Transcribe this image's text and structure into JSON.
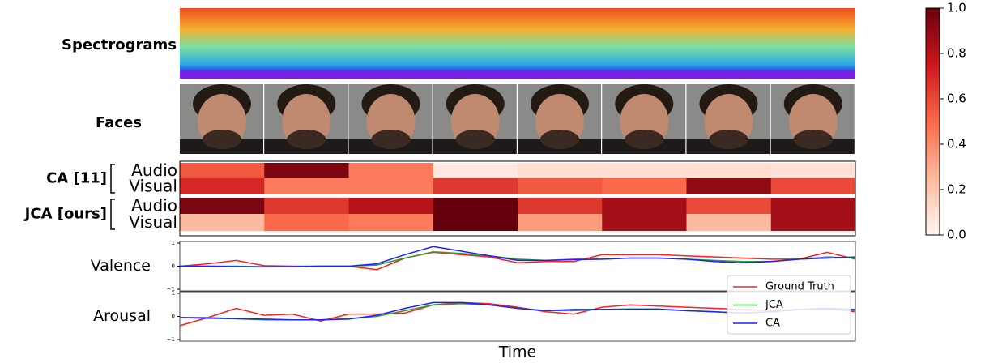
{
  "panels": {
    "spectrogram_label": "Spectrograms",
    "faces_label": "Faces"
  },
  "chart_data": [
    {
      "type": "heatmap",
      "row_groups": [
        {
          "name": "CA [11]",
          "rows": [
            {
              "name": "Audio",
              "values": [
                0.55,
                0.95,
                0.45,
                0.05,
                0.1,
                0.1,
                0.1,
                0.08
              ]
            },
            {
              "name": "Visual",
              "values": [
                0.7,
                0.45,
                0.45,
                0.65,
                0.55,
                0.5,
                0.9,
                0.6
              ]
            }
          ]
        },
        {
          "name": "JCA [ours]",
          "rows": [
            {
              "name": "Audio",
              "values": [
                0.95,
                0.65,
                0.8,
                1.0,
                0.65,
                0.85,
                0.6,
                0.85
              ]
            },
            {
              "name": "Visual",
              "values": [
                0.25,
                0.5,
                0.45,
                1.0,
                0.35,
                0.85,
                0.25,
                0.85
              ]
            }
          ]
        }
      ],
      "colormap": [
        "#fff5f0",
        "#fcbba1",
        "#fb6a4a",
        "#cb181d",
        "#67000d"
      ],
      "vlim": [
        0,
        1
      ],
      "colorbar_ticks": [
        {
          "value": 0,
          "label": "0.0"
        },
        {
          "value": 0.2,
          "label": "0.2"
        },
        {
          "value": 0.4,
          "label": "0.4"
        },
        {
          "value": 0.6,
          "label": "0.6"
        },
        {
          "value": 0.8,
          "label": "0.8"
        },
        {
          "value": 1,
          "label": "1.0"
        }
      ]
    },
    {
      "type": "line",
      "ylabel": "Valence",
      "ylim": [
        -1,
        1
      ],
      "yticks": [
        {
          "value": -1,
          "label": "−1"
        },
        0,
        1
      ],
      "series": [
        {
          "color": "#ff2020",
          "values": [
            0,
            0.1,
            0.25,
            0.02,
            0,
            0,
            0,
            -0.15,
            0.35,
            0.6,
            0.5,
            0.4,
            0.15,
            0.2,
            0.2,
            0.5,
            0.5,
            0.5,
            0.45,
            0.4,
            0.35,
            0.3,
            0.3,
            0.6,
            0.3
          ]
        },
        {
          "color": "#2ca02c",
          "values": [
            0,
            0,
            0,
            -0.02,
            -0.02,
            0,
            0,
            0.05,
            0.35,
            0.62,
            0.55,
            0.45,
            0.3,
            0.25,
            0.3,
            0.3,
            0.35,
            0.35,
            0.3,
            0.25,
            0.2,
            0.2,
            0.3,
            0.4,
            0.35
          ]
        },
        {
          "color": "#1f1fff",
          "values": [
            0,
            0,
            -0.02,
            -0.03,
            -0.02,
            0,
            0,
            0.1,
            0.5,
            0.85,
            0.65,
            0.45,
            0.25,
            0.25,
            0.28,
            0.3,
            0.35,
            0.35,
            0.3,
            0.2,
            0.15,
            0.2,
            0.3,
            0.35,
            0.4
          ]
        }
      ]
    },
    {
      "type": "line",
      "ylabel": "Arousal",
      "xlabel": "Time",
      "ylim": [
        -1,
        1
      ],
      "yticks": [
        {
          "value": -1,
          "label": "−1"
        },
        0,
        1
      ],
      "series": [
        {
          "name": "Ground Truth",
          "color": "#ff2020",
          "values": [
            -0.4,
            -0.05,
            0.35,
            0.05,
            0.1,
            -0.2,
            0.1,
            0.1,
            0.15,
            0.5,
            0.6,
            0.55,
            0.4,
            0.2,
            0.1,
            0.4,
            0.5,
            0.45,
            0.4,
            0.35,
            0.3,
            0.25,
            0.3,
            0.35,
            0.2
          ]
        },
        {
          "name": "JCA",
          "color": "#2ca02c",
          "values": [
            -0.05,
            -0.05,
            -0.1,
            -0.15,
            -0.15,
            -0.15,
            -0.1,
            0,
            0.25,
            0.5,
            0.55,
            0.5,
            0.35,
            0.25,
            0.25,
            0.3,
            0.3,
            0.3,
            0.25,
            0.2,
            0.15,
            0.2,
            0.3,
            0.3,
            0.25
          ]
        },
        {
          "name": "CA",
          "color": "#1f1fff",
          "values": [
            -0.05,
            -0.08,
            -0.1,
            -0.12,
            -0.15,
            -0.15,
            -0.12,
            0.05,
            0.35,
            0.6,
            0.6,
            0.5,
            0.35,
            0.25,
            0.3,
            0.3,
            0.32,
            0.32,
            0.25,
            0.2,
            0.15,
            0.2,
            0.3,
            0.35,
            0.3
          ]
        }
      ]
    }
  ]
}
